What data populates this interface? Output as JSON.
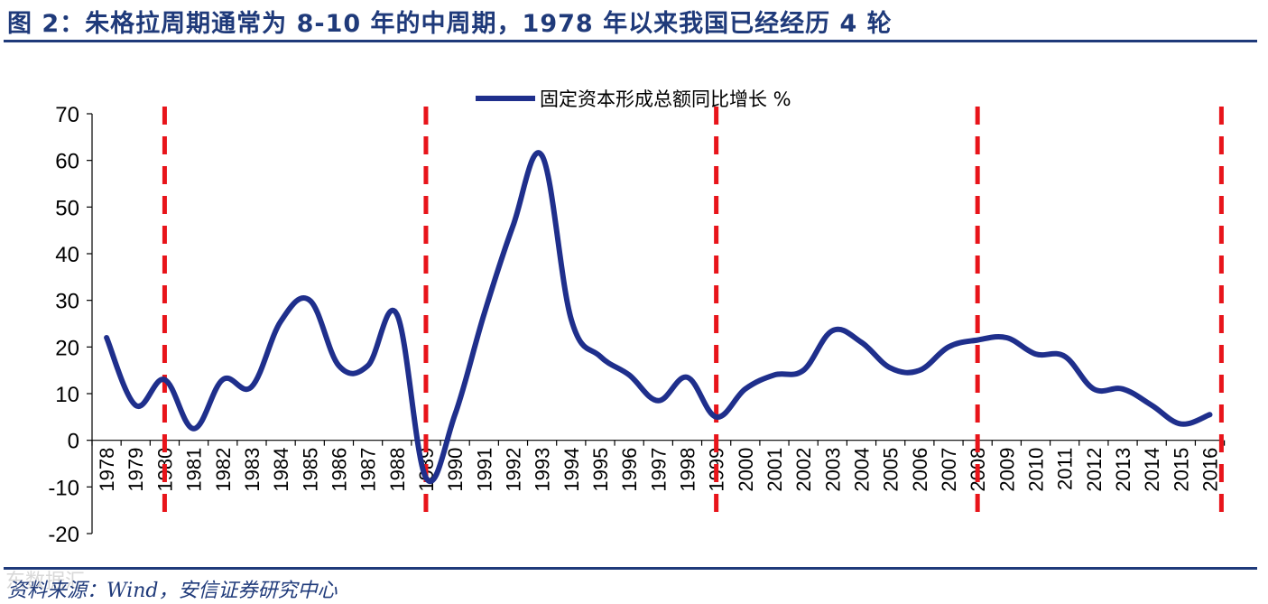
{
  "title": "图 2：朱格拉周期通常为 8-10 年的中周期，1978 年以来我国已经经历 4 轮",
  "source": "资料来源：Wind，安信证券研究中心",
  "watermark": "东数据汇",
  "colors": {
    "series": "#1f2f8c",
    "cycle_marker": "#e8141a",
    "title": "#1f3a7a"
  },
  "chart_data": {
    "type": "line",
    "title": "",
    "xlabel": "",
    "ylabel": "",
    "ylim": [
      -20,
      70
    ],
    "yticks": [
      70,
      60,
      50,
      40,
      30,
      20,
      10,
      0,
      -10,
      -20
    ],
    "grid": false,
    "legend_position": "top-center",
    "categories": [
      "1978",
      "1979",
      "1980",
      "1981",
      "1982",
      "1983",
      "1984",
      "1985",
      "1986",
      "1987",
      "1988",
      "1989",
      "1990",
      "1991",
      "1992",
      "1993",
      "1994",
      "1995",
      "1996",
      "1997",
      "1998",
      "1999",
      "2000",
      "2001",
      "2002",
      "2003",
      "2004",
      "2005",
      "2006",
      "2007",
      "2008",
      "2009",
      "2010",
      "2011",
      "2012",
      "2013",
      "2014",
      "2015",
      "2016"
    ],
    "series": [
      {
        "name": "固定资本形成总额同比增长 %",
        "values": [
          22,
          7.5,
          13,
          2.5,
          13,
          11.5,
          25.5,
          30,
          16,
          16,
          27,
          -8,
          5.5,
          27,
          46,
          61,
          26,
          18,
          14,
          8.5,
          13.5,
          5,
          11,
          14,
          15,
          23.5,
          21,
          15.5,
          15,
          20,
          21.5,
          22,
          18.5,
          18,
          11,
          11,
          7.5,
          3.5,
          5.5
        ]
      }
    ],
    "cycle_markers": [
      "1980-1981",
      "1989-1990",
      "1999-2000",
      "2008-2009",
      "2016+"
    ],
    "cycle_marker_positions": [
      2.5,
      11.5,
      21.5,
      30.5,
      38.9
    ]
  }
}
